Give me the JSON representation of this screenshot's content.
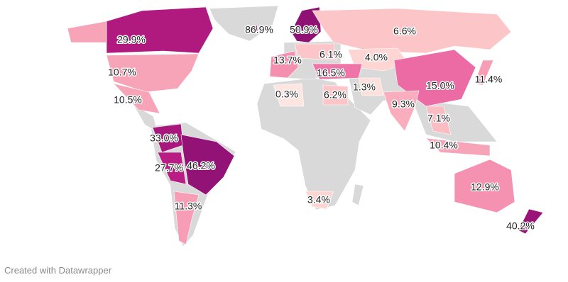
{
  "map": {
    "regions": [
      {
        "value": 29.9,
        "label": "29.9%",
        "color": "#b0197e"
      },
      {
        "value": 86.9,
        "label": "86.9%",
        "color": "#7a0a5e"
      },
      {
        "value": 50.9,
        "label": "50.9%",
        "color": "#8e1173"
      },
      {
        "value": 6.6,
        "label": "6.6%",
        "color": "#fcc6c8"
      },
      {
        "value": 13.7,
        "label": "13.7%",
        "color": "#f58fb0"
      },
      {
        "value": 6.1,
        "label": "6.1%",
        "color": "#fcc6c8"
      },
      {
        "value": 4.0,
        "label": "4.0%",
        "color": "#fdd6d4"
      },
      {
        "value": 10.7,
        "label": "10.7%",
        "color": "#f7a3b8"
      },
      {
        "value": 16.5,
        "label": "16.5%",
        "color": "#ef75a8"
      },
      {
        "value": 11.4,
        "label": "11.4%",
        "color": "#f79db5"
      },
      {
        "value": 15.0,
        "label": "15.0%",
        "color": "#ec6ba5"
      },
      {
        "value": 10.5,
        "label": "10.5%",
        "color": "#f7a3b8"
      },
      {
        "value": 0.3,
        "label": "0.3%",
        "color": "#fde6e2"
      },
      {
        "value": 6.2,
        "label": "6.2%",
        "color": "#fcc6c8"
      },
      {
        "value": 1.3,
        "label": "1.3%",
        "color": "#fde0dc"
      },
      {
        "value": 9.3,
        "label": "9.3%",
        "color": "#f9adbd"
      },
      {
        "value": 7.1,
        "label": "7.1%",
        "color": "#fbbcc4"
      },
      {
        "value": 33.0,
        "label": "33.0%",
        "color": "#a8177c"
      },
      {
        "value": 10.4,
        "label": "10.4%",
        "color": "#f7a3b8"
      },
      {
        "value": 27.7,
        "label": "27.7%",
        "color": "#b91c82"
      },
      {
        "value": 46.2,
        "label": "46.2%",
        "color": "#931276"
      },
      {
        "value": 12.9,
        "label": "12.9%",
        "color": "#f592b2"
      },
      {
        "value": 3.4,
        "label": "3.4%",
        "color": "#fdd6d4"
      },
      {
        "value": 11.3,
        "label": "11.3%",
        "color": "#f79db5"
      },
      {
        "value": 40.2,
        "label": "40.2%",
        "color": "#9a1478"
      }
    ]
  },
  "footer": "Created with Datawrapper"
}
